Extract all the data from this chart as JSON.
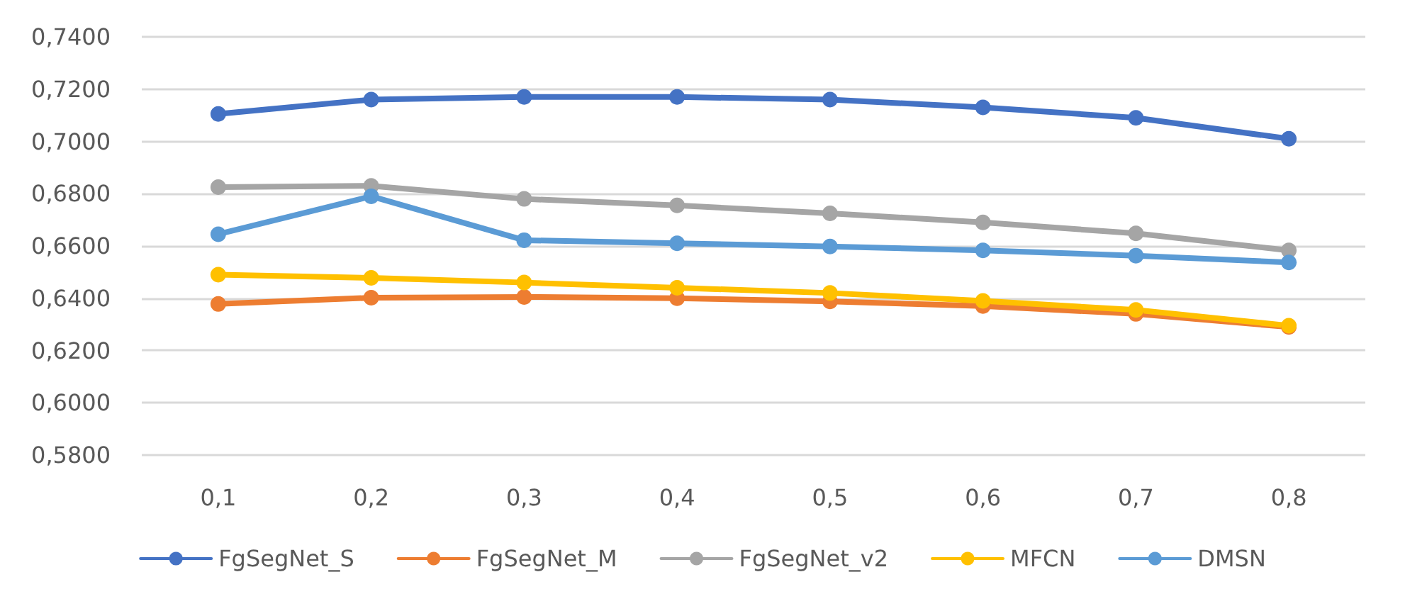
{
  "chart_data": {
    "type": "line",
    "categories": [
      "0,1",
      "0,2",
      "0,3",
      "0,4",
      "0,5",
      "0,6",
      "0,7",
      "0,8"
    ],
    "series": [
      {
        "name": "FgSegNet_S",
        "color": "#4472c4",
        "values": [
          0.7105,
          0.716,
          0.717,
          0.717,
          0.716,
          0.713,
          0.709,
          0.701
        ]
      },
      {
        "name": "FgSegNet_M",
        "color": "#ed7d31",
        "values": [
          0.6378,
          0.6402,
          0.6405,
          0.64,
          0.6388,
          0.637,
          0.634,
          0.629
        ]
      },
      {
        "name": "FgSegNet_v2",
        "color": "#a5a5a5",
        "values": [
          0.6825,
          0.683,
          0.678,
          0.6755,
          0.6725,
          0.669,
          0.6648,
          0.6583
        ]
      },
      {
        "name": "MFCN",
        "color": "#ffc000",
        "values": [
          0.649,
          0.6478,
          0.646,
          0.644,
          0.642,
          0.639,
          0.6355,
          0.6295
        ]
      },
      {
        "name": "DMSN",
        "color": "#5b9bd5",
        "values": [
          0.6645,
          0.679,
          0.6622,
          0.661,
          0.6598,
          0.6583,
          0.6563,
          0.6537
        ]
      }
    ],
    "ylim": [
      0.58,
      0.74
    ],
    "yticks": [
      {
        "value": 0.58,
        "label": "0,5800"
      },
      {
        "value": 0.6,
        "label": "0,6000"
      },
      {
        "value": 0.62,
        "label": "0,6200"
      },
      {
        "value": 0.64,
        "label": "0,6400"
      },
      {
        "value": 0.66,
        "label": "0,6600"
      },
      {
        "value": 0.68,
        "label": "0,6800"
      },
      {
        "value": 0.7,
        "label": "0,7000"
      },
      {
        "value": 0.72,
        "label": "0,7200"
      },
      {
        "value": 0.74,
        "label": "0,7400"
      }
    ],
    "grid": "y",
    "legend": "bottom",
    "marker": "circle",
    "line_style": "solid"
  }
}
